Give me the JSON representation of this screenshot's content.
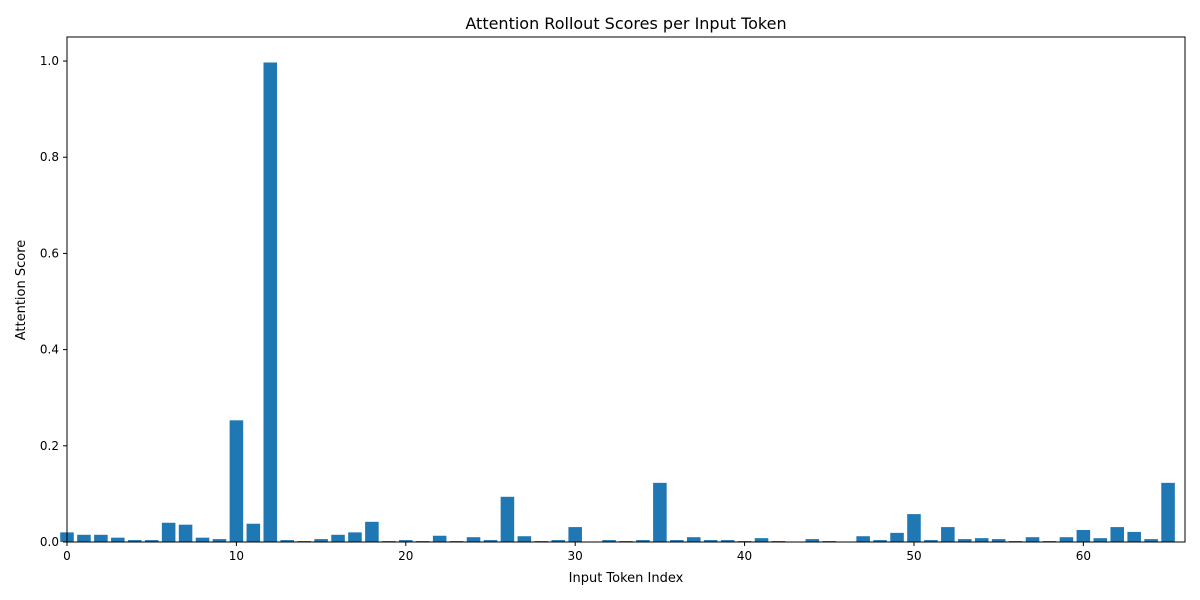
{
  "chart_data": {
    "type": "bar",
    "title": "Attention Rollout Scores per Input Token",
    "xlabel": "Input Token Index",
    "ylabel": "Attention Score",
    "x": [
      0,
      1,
      2,
      3,
      4,
      5,
      6,
      7,
      8,
      9,
      10,
      11,
      12,
      13,
      14,
      15,
      16,
      17,
      18,
      19,
      20,
      21,
      22,
      23,
      24,
      25,
      26,
      27,
      28,
      29,
      30,
      31,
      32,
      33,
      34,
      35,
      36,
      37,
      38,
      39,
      40,
      41,
      42,
      43,
      44,
      45,
      46,
      47,
      48,
      49,
      50,
      51,
      52,
      53,
      54,
      55,
      56,
      57,
      58,
      59,
      60,
      61,
      62,
      63,
      64,
      65
    ],
    "values": [
      0.02,
      0.015,
      0.015,
      0.009,
      0.004,
      0.004,
      0.04,
      0.036,
      0.009,
      0.006,
      0.253,
      0.038,
      0.997,
      0.004,
      0.002,
      0.006,
      0.015,
      0.02,
      0.042,
      0.002,
      0.004,
      0.002,
      0.013,
      0.002,
      0.01,
      0.004,
      0.094,
      0.012,
      0.002,
      0.004,
      0.031,
      0.0,
      0.004,
      0.002,
      0.004,
      0.123,
      0.004,
      0.01,
      0.004,
      0.004,
      0.002,
      0.008,
      0.002,
      0.0,
      0.006,
      0.002,
      0.0,
      0.012,
      0.004,
      0.019,
      0.058,
      0.004,
      0.031,
      0.006,
      0.008,
      0.006,
      0.002,
      0.01,
      0.002,
      0.01,
      0.025,
      0.008,
      0.031,
      0.021,
      0.006,
      0.123
    ],
    "xlim": [
      0,
      66
    ],
    "ylim": [
      0,
      1.05
    ],
    "xticks": [
      0,
      10,
      20,
      30,
      40,
      50,
      60
    ],
    "yticks": [
      0.0,
      0.2,
      0.4,
      0.6,
      0.8,
      1.0
    ],
    "ytick_labels": [
      "0.0",
      "0.2",
      "0.4",
      "0.6",
      "0.8",
      "1.0"
    ],
    "grid": false,
    "legend": "none",
    "bar_color": "#1f77b4"
  }
}
